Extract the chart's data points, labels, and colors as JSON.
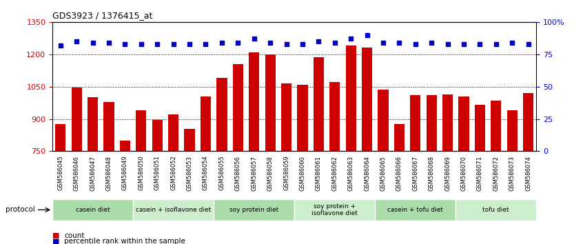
{
  "title": "GDS3923 / 1376415_at",
  "samples": [
    "GSM586045",
    "GSM586046",
    "GSM586047",
    "GSM586048",
    "GSM586049",
    "GSM586050",
    "GSM586051",
    "GSM586052",
    "GSM586053",
    "GSM586054",
    "GSM586055",
    "GSM586056",
    "GSM586057",
    "GSM586058",
    "GSM586059",
    "GSM586060",
    "GSM586061",
    "GSM586062",
    "GSM586063",
    "GSM586064",
    "GSM586065",
    "GSM586066",
    "GSM586067",
    "GSM586068",
    "GSM586069",
    "GSM586070",
    "GSM586071",
    "GSM586072",
    "GSM586073",
    "GSM586074"
  ],
  "counts": [
    875,
    1047,
    1000,
    980,
    800,
    940,
    895,
    920,
    855,
    1005,
    1090,
    1155,
    1210,
    1200,
    1065,
    1060,
    1185,
    1070,
    1240,
    1230,
    1035,
    875,
    1010,
    1010,
    1015,
    1005,
    965,
    985,
    940,
    1020
  ],
  "percentile_ranks": [
    82,
    85,
    84,
    84,
    83,
    83,
    83,
    83,
    83,
    83,
    84,
    84,
    87,
    84,
    83,
    83,
    85,
    84,
    87,
    90,
    84,
    84,
    83,
    84,
    83,
    83,
    83,
    83,
    84,
    83
  ],
  "bar_color": "#cc0000",
  "dot_color": "#0000cc",
  "ymin": 750,
  "ymax": 1350,
  "ylim_right": [
    0,
    100
  ],
  "yticks_left": [
    750,
    900,
    1050,
    1200,
    1350
  ],
  "yticks_right": [
    0,
    25,
    50,
    75,
    100
  ],
  "ytick_labels_right": [
    "0",
    "25",
    "50",
    "75",
    "100%"
  ],
  "grid_values": [
    900,
    1050,
    1200
  ],
  "protocols": [
    {
      "label": "casein diet",
      "start": 0,
      "end": 5,
      "color": "#aaddaa"
    },
    {
      "label": "casein + isoflavone diet",
      "start": 5,
      "end": 10,
      "color": "#cceecc"
    },
    {
      "label": "soy protein diet",
      "start": 10,
      "end": 15,
      "color": "#aaddaa"
    },
    {
      "label": "soy protein +\nisoflavone diet",
      "start": 15,
      "end": 20,
      "color": "#cceecc"
    },
    {
      "label": "casein + tofu diet",
      "start": 20,
      "end": 25,
      "color": "#aaddaa"
    },
    {
      "label": "tofu diet",
      "start": 25,
      "end": 30,
      "color": "#cceecc"
    }
  ],
  "protocol_row_label": "protocol",
  "legend_count_label": "count",
  "legend_pct_label": "percentile rank within the sample",
  "bg_color": "#ffffff",
  "tick_label_color_left": "#cc0000",
  "tick_label_color_right": "#0000cc"
}
